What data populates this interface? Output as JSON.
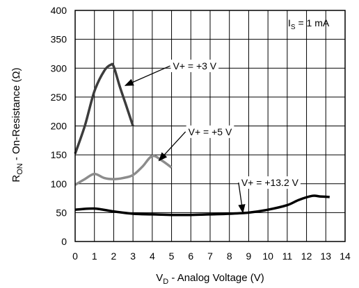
{
  "chart_data": {
    "type": "line",
    "xlabel": {
      "main": "V",
      "sub": "D",
      "rest": " - Analog Voltage (V)"
    },
    "ylabel": {
      "main": "R",
      "sub": "ON",
      "rest": " - On-Resistance (Ω)"
    },
    "xlim": [
      0,
      14
    ],
    "ylim": [
      0,
      400
    ],
    "xticks": [
      0,
      1,
      2,
      3,
      4,
      5,
      6,
      7,
      8,
      9,
      10,
      11,
      12,
      13,
      14
    ],
    "yticks": [
      0,
      50,
      100,
      150,
      200,
      250,
      300,
      350,
      400
    ],
    "grid": true,
    "condition": {
      "main": "I",
      "sub": "S",
      "rest": " = 1 mA"
    },
    "series": [
      {
        "name": "V+ = +3 V",
        "color": "#3c3c3c",
        "x": [
          0,
          0.5,
          1,
          1.5,
          1.85,
          2,
          2.3,
          2.6,
          3
        ],
        "y": [
          152,
          200,
          260,
          295,
          306,
          303,
          270,
          240,
          200
        ]
      },
      {
        "name": "V+ = +5 V",
        "color": "#8c8c8c",
        "x": [
          0,
          0.5,
          1,
          1.5,
          2,
          2.5,
          3,
          3.5,
          4,
          4.5,
          5
        ],
        "y": [
          98,
          108,
          117,
          110,
          108,
          110,
          115,
          130,
          148,
          140,
          128
        ]
      },
      {
        "name": "V+ = +13.2 V",
        "color": "#000000",
        "x": [
          0,
          1,
          2,
          3,
          4,
          5,
          6,
          7,
          8,
          9,
          10,
          11,
          11.6,
          12.3,
          12.7,
          13.2
        ],
        "y": [
          55,
          57,
          52,
          48,
          47,
          46,
          46,
          47,
          48,
          50,
          55,
          63,
          72,
          79,
          78,
          77
        ]
      }
    ],
    "annotations": [
      {
        "text": "V+ = +3 V",
        "series": 0,
        "label_x": 6.2,
        "label_y": 304,
        "arrow_to_x": 2.6,
        "arrow_to_y": 270
      },
      {
        "text": "V+ = +5 V",
        "series": 1,
        "label_x": 7.0,
        "label_y": 190,
        "arrow_to_x": 4.35,
        "arrow_to_y": 140
      },
      {
        "text": "V+ = +13.2 V",
        "series": 2,
        "label_x": 10.1,
        "label_y": 102,
        "arrow_to_x": 8.7,
        "arrow_to_y": 50
      }
    ]
  }
}
